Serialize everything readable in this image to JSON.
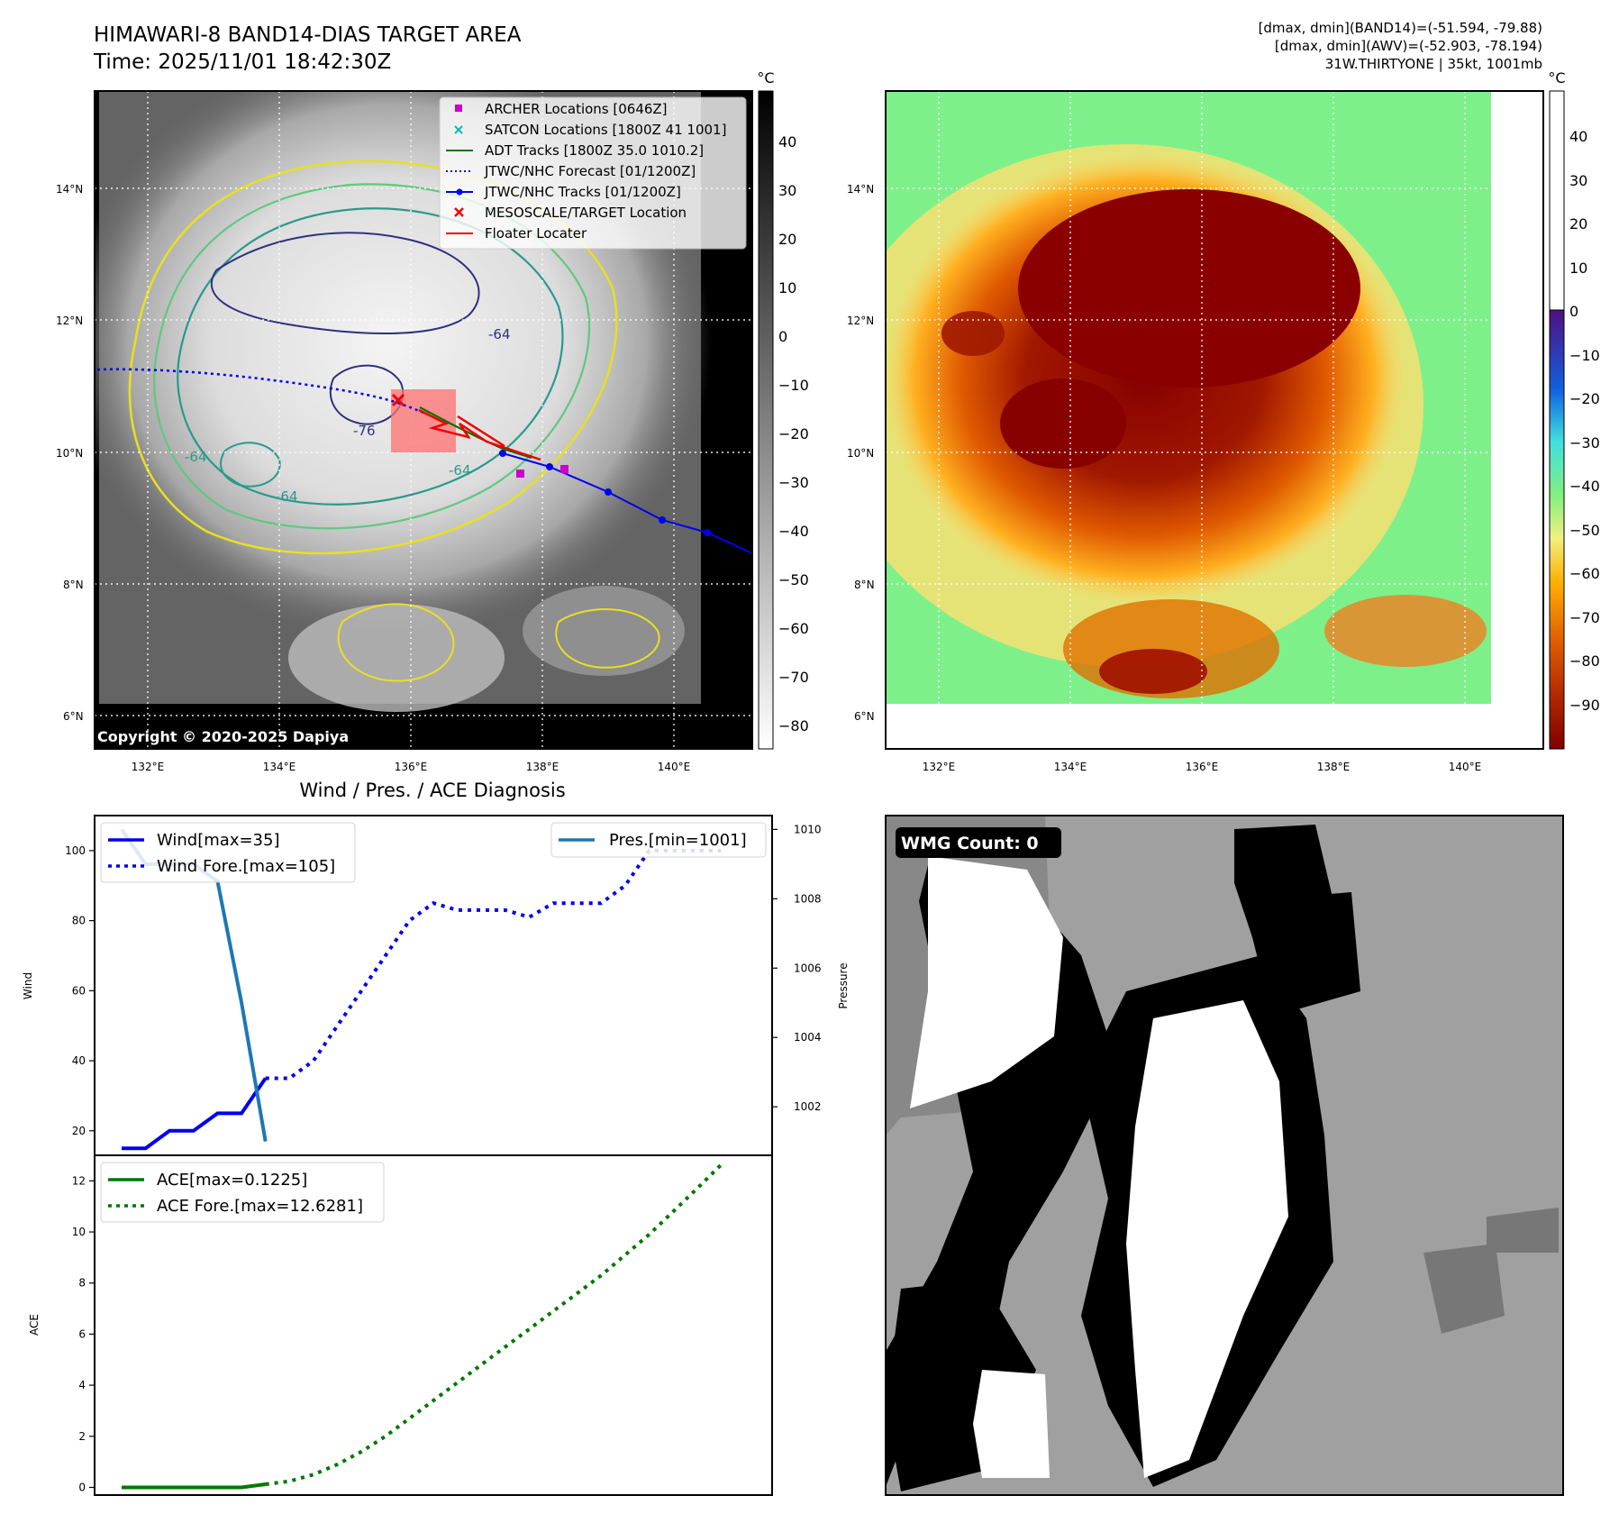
{
  "header": {
    "title_line1": "HIMAWARI-8 BAND14-DIAS TARGET AREA",
    "title_line2": "Time: 2025/11/01 18:42:30Z",
    "info_line1": "[dmax, dmin](BAND14)=(-51.594, -79.88)",
    "info_line2": "[dmax, dmin](AWV)=(-52.903, -78.194)",
    "info_line3": "31W.THIRTYONE | 35kt, 1001mb"
  },
  "map_axes": {
    "lon_ticks": [
      "132°E",
      "134°E",
      "136°E",
      "138°E",
      "140°E"
    ],
    "lat_ticks": [
      "14°N",
      "12°N",
      "10°N",
      "8°N",
      "6°N"
    ],
    "copyright": "Copyright © 2020-2025 Dapiya"
  },
  "colorbar_left": {
    "unit": "°C",
    "ticks": [
      "40",
      "30",
      "20",
      "10",
      "0",
      "−10",
      "−20",
      "−30",
      "−40",
      "−50",
      "−60",
      "−70",
      "−80"
    ]
  },
  "colorbar_right": {
    "unit": "°C",
    "ticks": [
      "40",
      "30",
      "20",
      "10",
      "0",
      "−10",
      "−20",
      "−30",
      "−40",
      "−50",
      "−60",
      "−70",
      "−80",
      "−90"
    ]
  },
  "map_legend": [
    {
      "label": "ARCHER Locations [0646Z]",
      "color": "#cc00cc",
      "kind": "square"
    },
    {
      "label": "SATCON Locations [1800Z 41 1001]",
      "color": "#00bbbb",
      "kind": "x"
    },
    {
      "label": "ADT Tracks [1800Z 35.0 1010.2]",
      "color": "#007700",
      "kind": "line"
    },
    {
      "label": "JTWC/NHC Forecast [01/1200Z]",
      "color": "#0000ee",
      "kind": "dotted"
    },
    {
      "label": "JTWC/NHC Tracks [01/1200Z]",
      "color": "#0000ee",
      "kind": "line-dot"
    },
    {
      "label": "MESOSCALE/TARGET Location",
      "color": "#ee0000",
      "kind": "x"
    },
    {
      "label": "Floater Locater",
      "color": "#ee0000",
      "kind": "line"
    }
  ],
  "contour_labels": [
    "-64",
    "-76",
    "-64",
    "-64",
    "-64"
  ],
  "diagnosis": {
    "title": "Wind / Pres. / ACE Diagnosis",
    "wind_axis_label": "Wind",
    "pressure_axis_label": "Pressure",
    "ace_axis_label": "ACE",
    "wmg_label": "WMG Count: 0"
  },
  "chart_data": [
    {
      "type": "line",
      "title": "",
      "ylabel": "Wind",
      "ylabel_right": "Pressure",
      "ylim": [
        13,
        110
      ],
      "ylim_right": [
        1000.6,
        1010.4
      ],
      "xlim": [
        0,
        26
      ],
      "yticks": [
        "20",
        "40",
        "60",
        "80",
        "100"
      ],
      "yticks_right": [
        "1002",
        "1004",
        "1006",
        "1008",
        "1010"
      ],
      "legend_left_position": "upper-left",
      "legend_right_position": "upper-right",
      "series": [
        {
          "name": "Wind[max=35]",
          "style": "solid",
          "color": "#0000ee",
          "axis": "left",
          "x": [
            0,
            1,
            2,
            3,
            4,
            5,
            6
          ],
          "values": [
            15,
            15,
            20,
            20,
            25,
            25,
            35
          ]
        },
        {
          "name": "Wind Fore.[max=105]",
          "style": "dotted",
          "color": "#0000ee",
          "axis": "left",
          "x": [
            6,
            7,
            8,
            9,
            10,
            11,
            12,
            13,
            14,
            15,
            16,
            17,
            18,
            19,
            20,
            21,
            22,
            23,
            24,
            25
          ],
          "values": [
            35,
            35,
            40,
            50,
            60,
            70,
            80,
            85,
            83,
            83,
            83,
            81,
            85,
            85,
            85,
            90,
            100,
            100,
            100,
            100
          ]
        },
        {
          "name": "Pres.[min=1001]",
          "style": "solid",
          "color": "#1f77b4",
          "axis": "right",
          "x": [
            0,
            1,
            2,
            3,
            4,
            5,
            6
          ],
          "values": [
            1010,
            1009,
            1009,
            1009,
            1008.5,
            1005,
            1001
          ]
        }
      ]
    },
    {
      "type": "line",
      "title": "",
      "ylabel": "ACE",
      "ylim": [
        -0.3,
        13.0
      ],
      "xlim": [
        0,
        26
      ],
      "yticks": [
        "0",
        "2",
        "4",
        "6",
        "8",
        "10",
        "12"
      ],
      "legend_position": "upper-left",
      "series": [
        {
          "name": "ACE[max=0.1225]",
          "style": "solid",
          "color": "#007700",
          "x": [
            0,
            1,
            2,
            3,
            4,
            5,
            6
          ],
          "values": [
            0,
            0,
            0,
            0,
            0,
            0,
            0.1225
          ]
        },
        {
          "name": "ACE Fore.[max=12.6281]",
          "style": "dotted",
          "color": "#007700",
          "x": [
            6,
            7,
            8,
            9,
            10,
            11,
            12,
            13,
            14,
            15,
            16,
            17,
            18,
            19,
            20,
            21,
            22,
            23,
            24,
            25
          ],
          "values": [
            0.1225,
            0.245,
            0.5,
            0.9,
            1.4,
            2.0,
            2.7,
            3.4,
            4.1,
            4.8,
            5.5,
            6.2,
            6.9,
            7.6,
            8.3,
            9.1,
            9.9,
            10.8,
            11.7,
            12.6281
          ]
        }
      ]
    }
  ]
}
